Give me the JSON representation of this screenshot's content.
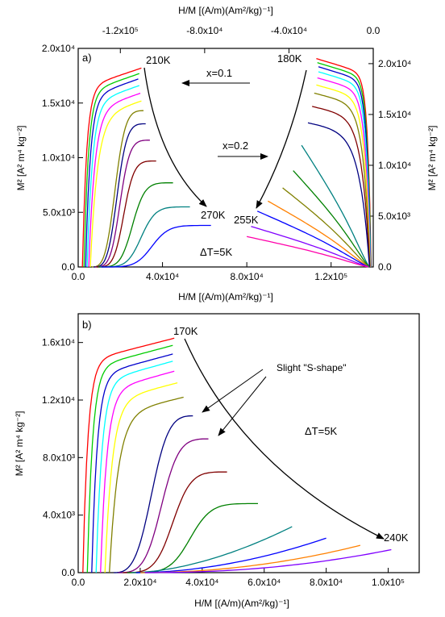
{
  "chart_data": [
    {
      "type": "line",
      "panel_label": "a)",
      "xlabel_bottom": "H/M [(A/m)(Am²/kg)⁻¹]",
      "xlabel_top": "H/M [(A/m)(Am²/kg)⁻¹]",
      "ylabel_left": "M² [A² m⁴ kg⁻²]",
      "ylabel_right": "M² [A² m⁴ kg⁻²]",
      "xlim_bottom": [
        0,
        140000
      ],
      "ylim_left": [
        0,
        20000
      ],
      "xlim_top": [
        -140000,
        0
      ],
      "ylim_right": [
        0,
        21500
      ],
      "x_ticks_bottom": [
        "0.0",
        "4.0x10⁴",
        "8.0x10⁴",
        "1.2x10⁵"
      ],
      "x_ticks_top": [
        "-1.2x10⁵",
        "-8.0x10⁴",
        "-4.0x10⁴",
        "0.0"
      ],
      "y_ticks_left": [
        "0.0",
        "5.0x10³",
        "1.0x10⁴",
        "1.5x10⁴",
        "2.0x10⁴"
      ],
      "y_ticks_right": [
        "0.0",
        "5.0x10³",
        "1.0x10⁴",
        "1.5x10⁴",
        "2.0x10⁴"
      ],
      "annotations": [
        "210K",
        "270K",
        "180K",
        "255K",
        "x=0.1",
        "x=0.2",
        "ΔT=5K"
      ],
      "series_group_x01": {
        "description_axis": "bottom/left",
        "series": [
          {
            "color": "#ff0000",
            "end": [
              30000,
              18200
            ]
          },
          {
            "color": "#00cc00",
            "end": [
              29000,
              17700
            ]
          },
          {
            "color": "#0000cc",
            "end": [
              28500,
              17200
            ]
          },
          {
            "color": "#00ffff",
            "end": [
              29000,
              16600
            ]
          },
          {
            "color": "#ff00ff",
            "end": [
              29500,
              15900
            ]
          },
          {
            "color": "#ffff00",
            "end": [
              30000,
              15200
            ]
          },
          {
            "color": "#808000",
            "end": [
              31000,
              14300
            ]
          },
          {
            "color": "#000080",
            "end": [
              32000,
              13100
            ]
          },
          {
            "color": "#800080",
            "end": [
              34000,
              11600
            ]
          },
          {
            "color": "#800000",
            "end": [
              37000,
              9700
            ]
          },
          {
            "color": "#008000",
            "end": [
              45000,
              7700
            ]
          },
          {
            "color": "#008080",
            "end": [
              53000,
              5500
            ]
          },
          {
            "color": "#0000ff",
            "end": [
              63000,
              3800
            ]
          }
        ]
      },
      "series_group_x02": {
        "description_axis": "top/right",
        "series": [
          {
            "color": "#ff0000",
            "end": [
              -27000,
              20500
            ]
          },
          {
            "color": "#00cc00",
            "end": [
              -26500,
              20100
            ]
          },
          {
            "color": "#0000cc",
            "end": [
              -26000,
              19700
            ]
          },
          {
            "color": "#00ffff",
            "end": [
              -26000,
              19200
            ]
          },
          {
            "color": "#ff00ff",
            "end": [
              -26500,
              18600
            ]
          },
          {
            "color": "#ffff00",
            "end": [
              -27000,
              17900
            ]
          },
          {
            "color": "#808000",
            "end": [
              -28000,
              17100
            ]
          },
          {
            "color": "#800000",
            "end": [
              -29000,
              15800
            ]
          },
          {
            "color": "#000080",
            "end": [
              -31000,
              14200
            ]
          },
          {
            "color": "#008080",
            "end": [
              -34000,
              12000
            ]
          },
          {
            "color": "#008000",
            "end": [
              -38000,
              9500
            ]
          },
          {
            "color": "#808000",
            "end": [
              -43000,
              7800
            ]
          },
          {
            "color": "#ff8000",
            "end": [
              -50000,
              6500
            ]
          },
          {
            "color": "#0000ff",
            "end": [
              -55000,
              5500
            ]
          },
          {
            "color": "#8000ff",
            "end": [
              -58000,
              4000
            ]
          },
          {
            "color": "#ff00aa",
            "end": [
              -60000,
              3000
            ]
          }
        ]
      }
    },
    {
      "type": "line",
      "panel_label": "b)",
      "xlabel": "H/M [(A/m)(Am²/kg)⁻¹]",
      "ylabel": "M² [A² m⁴ kg⁻²]",
      "xlim": [
        0,
        110000
      ],
      "ylim": [
        0,
        18000
      ],
      "x_ticks": [
        "0.0",
        "2.0x10⁴",
        "4.0x10⁴",
        "6.0x10⁴",
        "8.0x10⁴",
        "1.0x10⁵"
      ],
      "y_ticks": [
        "0.0",
        "4.0x10³",
        "8.0x10³",
        "1.2x10⁴",
        "1.6x10⁴"
      ],
      "annotations": [
        "170K",
        "240K",
        "Slight \"S-shape\"",
        "ΔT=5K"
      ],
      "series": [
        {
          "color": "#ff0000",
          "end": [
            31000,
            16300
          ]
        },
        {
          "color": "#00cc00",
          "end": [
            30500,
            15800
          ]
        },
        {
          "color": "#0000cc",
          "end": [
            30500,
            15200
          ]
        },
        {
          "color": "#00ffff",
          "end": [
            30500,
            14700
          ]
        },
        {
          "color": "#ff00ff",
          "end": [
            31000,
            14000
          ]
        },
        {
          "color": "#ffff00",
          "end": [
            32000,
            13200
          ]
        },
        {
          "color": "#808000",
          "end": [
            34000,
            12200
          ]
        },
        {
          "color": "#000080",
          "end": [
            37000,
            10900
          ]
        },
        {
          "color": "#800080",
          "end": [
            42000,
            9300
          ]
        },
        {
          "color": "#800000",
          "end": [
            48000,
            7000
          ]
        },
        {
          "color": "#008000",
          "end": [
            58000,
            4800
          ]
        },
        {
          "color": "#008080",
          "end": [
            69000,
            3200
          ]
        },
        {
          "color": "#0000ff",
          "end": [
            80000,
            2400
          ]
        },
        {
          "color": "#ff8000",
          "end": [
            91000,
            1900
          ]
        },
        {
          "color": "#8000ff",
          "end": [
            101000,
            1600
          ]
        }
      ]
    }
  ]
}
